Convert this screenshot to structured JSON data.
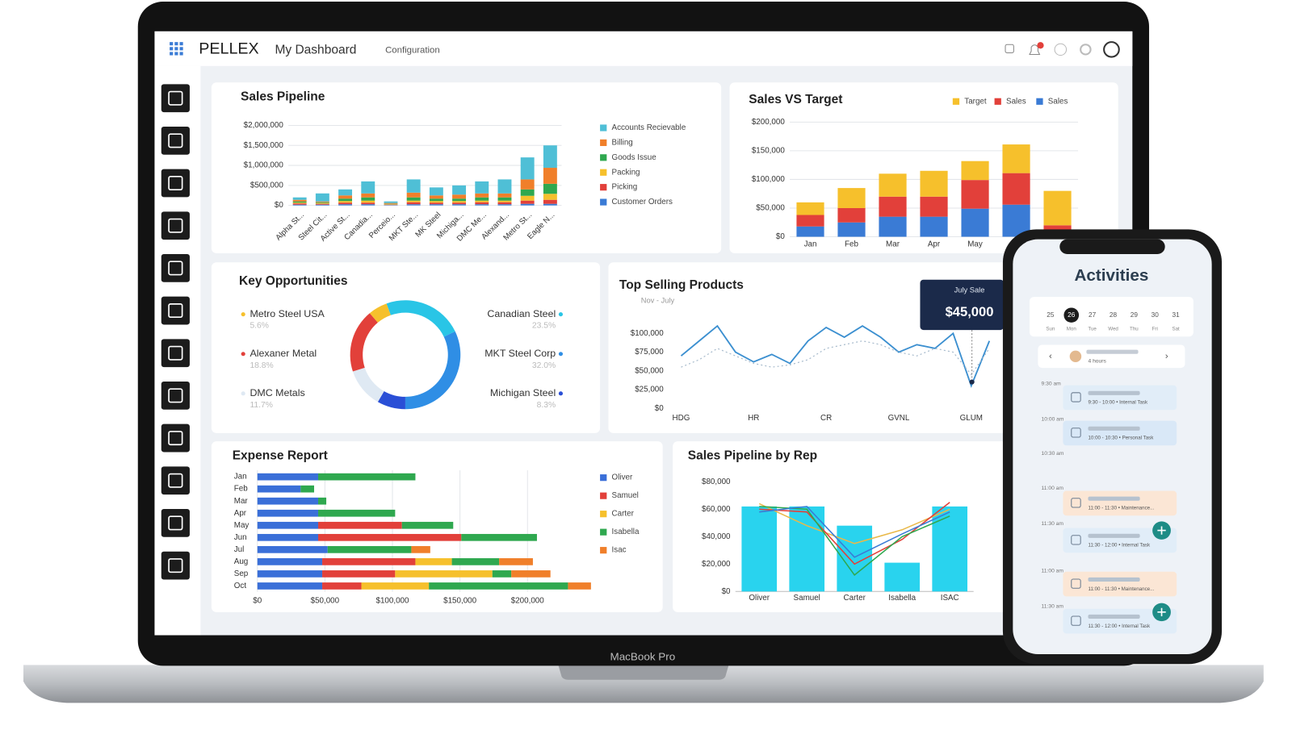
{
  "header": {
    "brand": "PELLEX",
    "title": "My Dashboard",
    "menu": "Configuration"
  },
  "device": {
    "label": "MacBook Pro"
  },
  "chart_data": [
    {
      "type": "bar",
      "title": "Sales Pipeline",
      "grid": true,
      "categories": [
        "Alpha St...",
        "Steel Cit...",
        "Active St...",
        "Canadia...",
        "Perceio...",
        "MKT Ste...",
        "MK Steel",
        "Michiga...",
        "DMC Me...",
        "Alexand...",
        "Metro St...",
        "Eagle N..."
      ],
      "series": [
        {
          "name": "Accounts Recievable",
          "color": "#4fbfd6",
          "values": [
            60000,
            200000,
            150000,
            300000,
            40000,
            330000,
            200000,
            230000,
            300000,
            350000,
            550000,
            560000
          ]
        },
        {
          "name": "Billing",
          "color": "#f07f2a",
          "values": [
            40000,
            20000,
            80000,
            100000,
            20000,
            120000,
            80000,
            100000,
            100000,
            100000,
            250000,
            400000
          ]
        },
        {
          "name": "Goods Issue",
          "color": "#2fa84f",
          "values": [
            30000,
            20000,
            60000,
            80000,
            10000,
            80000,
            60000,
            60000,
            80000,
            80000,
            160000,
            250000
          ]
        },
        {
          "name": "Packing",
          "color": "#f6c02c",
          "values": [
            20000,
            20000,
            40000,
            50000,
            10000,
            40000,
            40000,
            40000,
            40000,
            40000,
            120000,
            150000
          ]
        },
        {
          "name": "Picking",
          "color": "#e2403a",
          "values": [
            30000,
            20000,
            40000,
            40000,
            10000,
            50000,
            40000,
            40000,
            50000,
            50000,
            80000,
            100000
          ]
        },
        {
          "name": "Customer Orders",
          "color": "#3a7bd5",
          "values": [
            20000,
            20000,
            30000,
            30000,
            10000,
            30000,
            30000,
            30000,
            30000,
            30000,
            40000,
            40000
          ]
        }
      ],
      "ylim": [
        0,
        2000000
      ],
      "yticks": [
        {
          "value": 0,
          "label": "$0"
        },
        {
          "value": 500000,
          "label": "$500,000"
        },
        {
          "value": 1000000,
          "label": "$1,000,000"
        },
        {
          "value": 1500000,
          "label": "$1,500,000"
        },
        {
          "value": 2000000,
          "label": "$2,000,000"
        }
      ]
    },
    {
      "type": "bar",
      "title": "Sales VS   Target",
      "grid": true,
      "categories": [
        "Jan",
        "Feb",
        "Mar",
        "Apr",
        "May",
        null,
        null
      ],
      "series": [
        {
          "name": "Target",
          "color": "#f6c02c",
          "values": [
            22000,
            35000,
            40000,
            45000,
            33000,
            50000,
            60000
          ]
        },
        {
          "name": "Sales",
          "color": "#e2403a",
          "values": [
            20000,
            25000,
            35000,
            35000,
            50000,
            55000,
            15000
          ]
        },
        {
          "name": "Sales",
          "color": "#3a7bd5",
          "values": [
            18000,
            25000,
            35000,
            35000,
            49000,
            56000,
            5000
          ]
        }
      ],
      "ylim": [
        0,
        200000
      ],
      "yticks": [
        {
          "value": 0,
          "label": "$0"
        },
        {
          "value": 50000,
          "label": "$50,000"
        },
        {
          "value": 100000,
          "label": "$100,000"
        },
        {
          "value": 150000,
          "label": "$150,000"
        },
        {
          "value": 200000,
          "label": "$200,000"
        }
      ]
    },
    {
      "type": "donut",
      "title": "Key Opportunities",
      "categories": [
        "Canadian Steel",
        "MKT Steel Corp",
        "Michigan Steel",
        "DMC Metals",
        "Alexaner Metal",
        "Metro Steel USA"
      ],
      "values": [
        23.5,
        32,
        8.3,
        11.7,
        18.8,
        5.6
      ],
      "value_labels": [
        "23.5%",
        "32.0%",
        "8.3%",
        "11.7%",
        "18.8%",
        "5.6%"
      ],
      "colors": [
        "#29c5e6",
        "#2f8ee5",
        "#2a4fd6",
        "#dfe9f3",
        "#e2403a",
        "#f6c02c"
      ]
    },
    {
      "type": "line",
      "title": "Top Selling Products",
      "subtitle": "Nov - July",
      "grid": false,
      "categories": [
        "HDG",
        null,
        null,
        null,
        "HR",
        null,
        null,
        null,
        "CR",
        null,
        null,
        null,
        "GVNL",
        null,
        null,
        null,
        "GLUM",
        null
      ],
      "series": [
        {
          "color": "#3b8fd0",
          "values": [
            70000,
            90000,
            110000,
            75000,
            62000,
            72000,
            60000,
            90000,
            108000,
            95000,
            110000,
            95000,
            75000,
            85000,
            80000,
            100000,
            30000,
            90000
          ]
        },
        {
          "color": "#a9bccd",
          "style": "dotted",
          "values": [
            55000,
            65000,
            80000,
            70000,
            60000,
            55000,
            58000,
            65000,
            80000,
            85000,
            90000,
            85000,
            75000,
            70000,
            80000,
            75000,
            45000,
            80000
          ]
        }
      ],
      "ylim": [
        0,
        120000
      ],
      "yticks": [
        {
          "value": 0,
          "label": "$0"
        },
        {
          "value": 25000,
          "label": "$25,000"
        },
        {
          "value": 50000,
          "label": "$50,000"
        },
        {
          "value": 75000,
          "label": "$75,000"
        },
        {
          "value": 100000,
          "label": "$100,000"
        }
      ],
      "annotation": {
        "title": "July Sale",
        "value": "$45,000"
      }
    },
    {
      "type": "bar",
      "orientation": "horizontal",
      "title": "Expense Report",
      "grid": true,
      "categories": [
        "Jan",
        "Feb",
        "Mar",
        "Apr",
        "May",
        "Jun",
        "Jul",
        "Aug",
        "Sep",
        "Oct"
      ],
      "series": [
        {
          "name": "Oliver",
          "color": "#3a6fd8",
          "values": [
            45000,
            32000,
            45000,
            45000,
            45000,
            45000,
            52000,
            48000,
            48000,
            48000
          ]
        },
        {
          "name": "Samuel",
          "color": "#e2403a",
          "values": [
            0,
            0,
            0,
            0,
            62000,
            106000,
            0,
            69000,
            54000,
            29000
          ]
        },
        {
          "name": "Carter",
          "color": "#f6c02c",
          "values": [
            0,
            0,
            0,
            0,
            0,
            0,
            0,
            27000,
            72000,
            50000
          ]
        },
        {
          "name": "Isabella",
          "color": "#2fa84f",
          "values": [
            72000,
            10000,
            6000,
            57000,
            38000,
            56000,
            62000,
            35000,
            14000,
            103000
          ]
        },
        {
          "name": "Isac",
          "color": "#f07f2a",
          "values": [
            0,
            0,
            0,
            0,
            0,
            0,
            14000,
            25000,
            29000,
            17000
          ]
        }
      ],
      "xlim": [
        0,
        250000
      ],
      "xticks": [
        {
          "value": 0,
          "label": "$0"
        },
        {
          "value": 50000,
          "label": "$50,000"
        },
        {
          "value": 100000,
          "label": "$100,000"
        },
        {
          "value": 150000,
          "label": "$150,000"
        },
        {
          "value": 200000,
          "label": "$200,000"
        }
      ]
    },
    {
      "type": "bar",
      "title": "Sales Pipeline by Rep",
      "grid": false,
      "categories": [
        "Oliver",
        "Samuel",
        "Carter",
        "Isabella",
        "ISAC"
      ],
      "series": [
        {
          "type": "bar",
          "color": "#29d3ee",
          "values": [
            62000,
            62000,
            48000,
            21000,
            62000
          ]
        },
        {
          "type": "line",
          "color": "#e9b949",
          "values": [
            64000,
            48000,
            35000,
            45000,
            60000
          ]
        },
        {
          "type": "line",
          "color": "#e2403a",
          "values": [
            60000,
            58000,
            20000,
            38000,
            65000
          ]
        },
        {
          "type": "line",
          "color": "#2fa84f",
          "values": [
            62000,
            60000,
            12000,
            40000,
            55000
          ]
        },
        {
          "type": "line",
          "color": "#3a7bd5",
          "values": [
            58000,
            62000,
            25000,
            42000,
            58000
          ]
        }
      ],
      "ylim": [
        0,
        80000
      ],
      "yticks": [
        {
          "value": 0,
          "label": "$0"
        },
        {
          "value": 20000,
          "label": "$20,000"
        },
        {
          "value": 40000,
          "label": "$40,000"
        },
        {
          "value": 60000,
          "label": "$60,000"
        },
        {
          "value": 80000,
          "label": "$80,000"
        }
      ]
    }
  ],
  "activities": {
    "title": "Activities",
    "days": [
      {
        "date": "25",
        "day": "Sun"
      },
      {
        "date": "26",
        "day": "Mon"
      },
      {
        "date": "27",
        "day": "Tue"
      },
      {
        "date": "28",
        "day": "Wed"
      },
      {
        "date": "29",
        "day": "Thu"
      },
      {
        "date": "30",
        "day": "Fri"
      },
      {
        "date": "31",
        "day": "Sat"
      }
    ],
    "duration": "4 hours",
    "times": [
      "9:30 am",
      "10:00 am",
      "10:30 am",
      "11:00 am",
      "11:30 am",
      "11:00 am",
      "11:30 am"
    ],
    "tasks": [
      "9:30 - 10:00 • Internal Task",
      "10:00 - 10:30 • Personal Task",
      "11:00 - 11:30 • Maintenance...",
      "11:30 - 12:00 • Internal Task",
      "11:00 - 11:30 • Maintenance...",
      "11:30 - 12:00 • Internal Task"
    ]
  }
}
